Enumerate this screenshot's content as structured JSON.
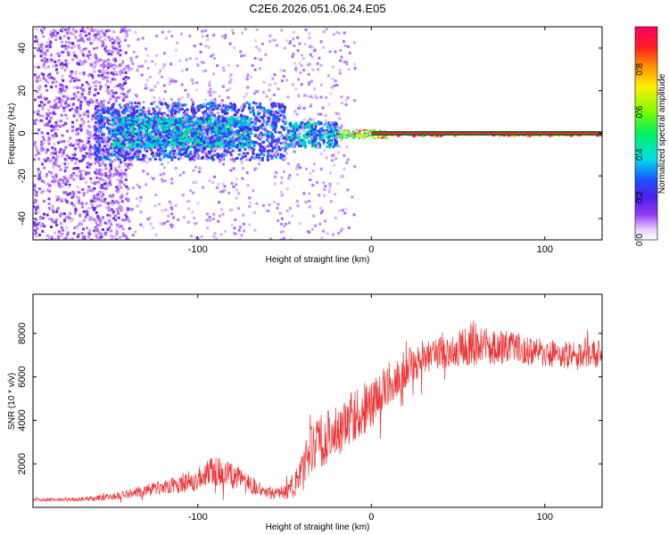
{
  "figure": {
    "title": "C2E6.2026.051.06.24.E05"
  },
  "chart_data": [
    {
      "type": "heatmap",
      "xlabel": "Height of straight line (km)",
      "ylabel": "Frequency (Hz)",
      "xlim": [
        -195,
        133
      ],
      "ylim": [
        -50,
        50
      ],
      "xticks": [
        -100,
        0,
        100
      ],
      "yticks": [
        -40,
        -20,
        0,
        20,
        40
      ],
      "line": {
        "y": 0,
        "x": [
          0,
          133
        ]
      },
      "colorbar": {
        "label": "Normalized spectral amplitude",
        "range": [
          0.0,
          1.0
        ],
        "ticks": [
          0.0,
          0.2,
          0.4,
          0.6,
          0.8
        ]
      },
      "regions": [
        {
          "x": [
            -195,
            -140
          ],
          "y": [
            -50,
            50
          ],
          "level": 0.13
        },
        {
          "x": [
            -160,
            -50
          ],
          "y": [
            -12,
            15
          ],
          "level": 0.25
        },
        {
          "x": [
            -150,
            -70
          ],
          "y": [
            -6,
            8
          ],
          "level": 0.35
        },
        {
          "x": [
            -50,
            -20
          ],
          "y": [
            -6,
            6
          ],
          "level": 0.33
        },
        {
          "x": [
            -20,
            10
          ],
          "y": [
            -2,
            2
          ],
          "level": 0.62
        },
        {
          "x": [
            10,
            133
          ],
          "y": [
            -1,
            1
          ],
          "level": 0.9
        }
      ]
    },
    {
      "type": "line",
      "xlabel": "Height of straight line (km)",
      "ylabel": "SNR (10 * v/v)",
      "xlim": [
        -195,
        133
      ],
      "ylim": [
        0,
        9800
      ],
      "xticks": [
        -100,
        0,
        100
      ],
      "yticks": [
        2000,
        4000,
        6000,
        8000
      ],
      "series": [
        {
          "name": "SNR",
          "color": "#ee3333",
          "x": [
            -195,
            -180,
            -160,
            -145,
            -130,
            -115,
            -100,
            -92,
            -85,
            -78,
            -65,
            -55,
            -48,
            -40,
            -35,
            -30,
            -25,
            -20,
            -10,
            0,
            5,
            10,
            20,
            30,
            45,
            55,
            60,
            70,
            80,
            90,
            100,
            110,
            120,
            133
          ],
          "y": [
            350,
            350,
            400,
            550,
            750,
            1000,
            1300,
            1700,
            1600,
            1400,
            850,
            600,
            750,
            1500,
            2600,
            3000,
            3300,
            3500,
            4200,
            4800,
            5200,
            5700,
            6400,
            6900,
            7200,
            7400,
            7600,
            7300,
            7400,
            7200,
            7100,
            7000,
            7000,
            7100
          ],
          "noise": [
            60,
            80,
            120,
            200,
            300,
            400,
            550,
            700,
            650,
            550,
            350,
            250,
            400,
            1000,
            1300,
            1300,
            1300,
            1200,
            1200,
            1200,
            1100,
            1000,
            900,
            800,
            800,
            900,
            1100,
            800,
            750,
            700,
            700,
            650,
            650,
            650
          ]
        }
      ]
    }
  ]
}
